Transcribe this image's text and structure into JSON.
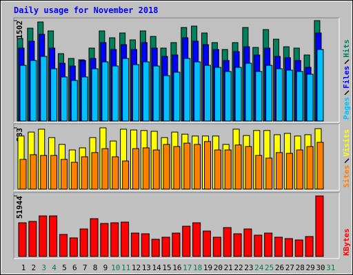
{
  "chart_data": {
    "type": "bar",
    "title": "Daily usage for November 2018",
    "categories": [
      1,
      2,
      3,
      4,
      5,
      6,
      7,
      8,
      9,
      10,
      11,
      12,
      13,
      14,
      15,
      16,
      17,
      18,
      19,
      20,
      21,
      22,
      23,
      24,
      25,
      26,
      27,
      28,
      29,
      30,
      31
    ],
    "category_colors": [
      "#000000",
      "#000000",
      "#008040",
      "#008040",
      "#000000",
      "#000000",
      "#000000",
      "#000000",
      "#000000",
      "#008040",
      "#008040",
      "#000000",
      "#000000",
      "#000000",
      "#000000",
      "#000000",
      "#008040",
      "#008040",
      "#000000",
      "#000000",
      "#000000",
      "#000000",
      "#000000",
      "#008040",
      "#008040",
      "#000000",
      "#000000",
      "#000000",
      "#000000",
      "#000000",
      "#008040"
    ],
    "panels": [
      {
        "ylim": [
          0,
          1502
        ],
        "yticks": [
          1502
        ],
        "series": [
          {
            "name": "Hits",
            "color": "#00805c",
            "values": [
              1235,
              1389,
              1482,
              1348,
              1008,
              936,
              916,
              1091,
              1348,
              1245,
              1317,
              1214,
              1348,
              1266,
              1091,
              1173,
              1399,
              1420,
              1317,
              1173,
              1070,
              1173,
              1399,
              1101,
              1368,
              1224,
              1111,
              1091,
              988,
              1502,
              null
            ]
          },
          {
            "name": "Files",
            "color": "#0000ff",
            "values": [
              1091,
              1194,
              1297,
              1091,
              864,
              823,
              906,
              936,
              1173,
              1070,
              1142,
              1070,
              1173,
              1091,
              967,
              988,
              1245,
              1194,
              1142,
              1070,
              906,
              1039,
              1111,
              988,
              1091,
              967,
              947,
              906,
              803,
              1317,
              null
            ]
          },
          {
            "name": "Pages",
            "color": "#00c0ff",
            "values": [
              833,
              906,
              967,
              782,
              659,
              607,
              659,
              782,
              885,
              823,
              936,
              844,
              885,
              823,
              679,
              731,
              936,
              885,
              833,
              803,
              741,
              803,
              864,
              741,
              833,
              782,
              761,
              741,
              700,
              1070,
              null
            ]
          }
        ]
      },
      {
        "ylim": [
          0,
          233
        ],
        "yticks": [
          233
        ],
        "series": [
          {
            "name": "Visits",
            "color": "#ffff00",
            "values": [
              202,
              217,
              228,
              196,
              170,
              149,
              157,
              196,
              233,
              183,
              228,
              225,
              223,
              220,
              196,
              217,
              209,
              202,
              202,
              202,
              170,
              228,
              204,
              223,
              223,
              207,
              212,
              202,
              207,
              230,
              null
            ]
          },
          {
            "name": "Sites",
            "color": "#ff8000",
            "values": [
              113,
              131,
              128,
              128,
              113,
              102,
              123,
              139,
              154,
              123,
              107,
              154,
              157,
              149,
              170,
              162,
              175,
              170,
              181,
              149,
              149,
              168,
              162,
              128,
              118,
              139,
              136,
              149,
              162,
              178,
              null
            ]
          }
        ]
      },
      {
        "ylim": [
          0,
          51944
        ],
        "yticks": [
          51944
        ],
        "series": [
          {
            "name": "KBytes",
            "color": "#ff0000",
            "values": [
              28910,
              30090,
              34810,
              34810,
              18880,
              15930,
              23600,
              32450,
              28320,
              28910,
              29500,
              20060,
              19470,
              14750,
              16520,
              20060,
              25960,
              28910,
              21830,
              16520,
              24780,
              19470,
              23600,
              18290,
              20060,
              16520,
              15340,
              14160,
              17110,
              51944,
              null
            ]
          }
        ]
      }
    ]
  }
}
